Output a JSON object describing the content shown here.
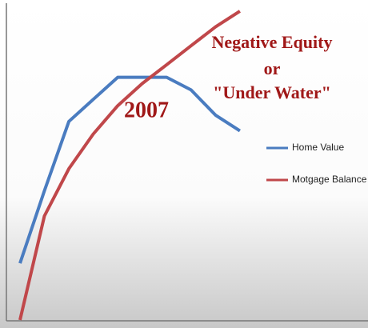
{
  "chart_data": {
    "type": "line",
    "categories": [
      null,
      null,
      null,
      null,
      null,
      null,
      null,
      null,
      null,
      null
    ],
    "series": [
      {
        "name": "Home Value",
        "color": "#4a7cc0",
        "values": [
          18,
          41,
          63,
          70,
          77,
          77,
          77,
          73,
          65,
          60
        ]
      },
      {
        "name": "Motgage Balance",
        "color": "#c0474a",
        "values": [
          0,
          33,
          48,
          59,
          68,
          75,
          81,
          87,
          93,
          98
        ]
      }
    ],
    "ylim": [
      0,
      100
    ],
    "annotations": [
      "Negative Equity",
      "or",
      "\"Under Water\"",
      "2007"
    ]
  }
}
